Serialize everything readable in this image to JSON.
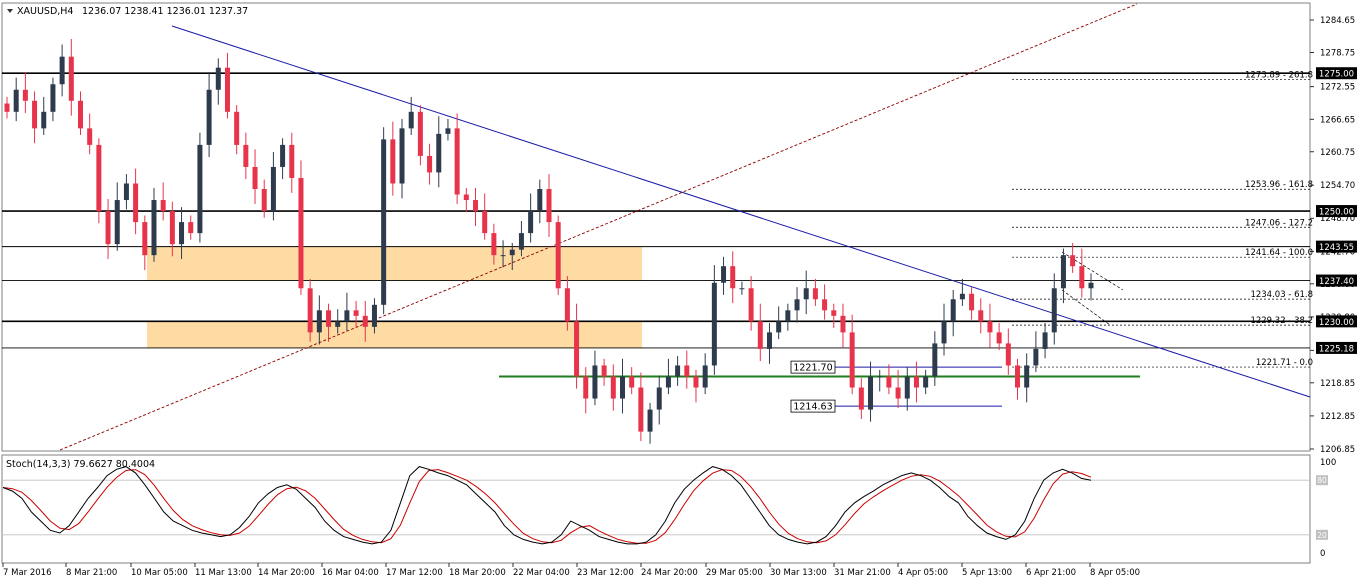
{
  "header": {
    "symbol": "XAUUSD,H4",
    "ohlc": "1236.07 1238.41 1236.01 1237.37"
  },
  "price_axis": {
    "ticks": [
      "1284.65",
      "1278.75",
      "1272.55",
      "1266.65",
      "1260.75",
      "1254.70",
      "1248.70",
      "1242.70",
      "1236.80",
      "1230.80",
      "1224.75",
      "1218.85",
      "1212.85",
      "1206.85"
    ],
    "tags": [
      {
        "label": "1275.00",
        "value": 1275.0
      },
      {
        "label": "1250.00",
        "value": 1250.0
      },
      {
        "label": "1243.55",
        "value": 1243.55
      },
      {
        "label": "1237.40",
        "value": 1237.4
      },
      {
        "label": "1230.00",
        "value": 1230.0
      },
      {
        "label": "1225.18",
        "value": 1225.18
      }
    ]
  },
  "fib_labels": [
    {
      "label": "1273.89 - 261.8",
      "value": 1273.89
    },
    {
      "label": "1253.96 - 161.8",
      "value": 1253.96
    },
    {
      "label": "1247.06 - 127.2",
      "value": 1247.06
    },
    {
      "label": "1241.64 - 100.0",
      "value": 1241.64
    },
    {
      "label": "1234.03 - 61.8",
      "value": 1234.03
    },
    {
      "label": "1229.32 - 38.2",
      "value": 1229.32
    },
    {
      "label": "1221.71 - 0.0",
      "value": 1221.71
    }
  ],
  "price_boxes": [
    {
      "label": "1221.70",
      "value": 1221.7
    },
    {
      "label": "1214.63",
      "value": 1214.63
    }
  ],
  "stoch": {
    "title": "Stoch(14,3,3) 79.6627 80.4004",
    "ticks": [
      "100",
      "80",
      "20",
      "0"
    ]
  },
  "time_axis": [
    "7 Mar 2016",
    "8 Mar 21:00",
    "10 Mar 05:00",
    "11 Mar 13:00",
    "14 Mar 20:00",
    "16 Mar 04:00",
    "17 Mar 12:00",
    "18 Mar 20:00",
    "22 Mar 04:00",
    "23 Mar 12:00",
    "24 Mar 20:00",
    "29 Mar 05:00",
    "30 Mar 13:00",
    "31 Mar 21:00",
    "4 Apr 05:00",
    "5 Apr 13:00",
    "6 Apr 21:00",
    "8 Apr 05:00"
  ],
  "colors": {
    "bull": "#2d3b4d",
    "bear": "#e8344a",
    "trend": "#1a1aa8",
    "support": "#1e7e1e",
    "zone": "#ffdba4",
    "stoch_main": "#000000",
    "stoch_signal": "#cc0000"
  },
  "chart_data": {
    "type": "candlestick",
    "symbol": "XAUUSD",
    "timeframe": "H4",
    "ylim": [
      1205.0,
      1289.0
    ],
    "series": [
      {
        "name": "price",
        "values": [
          1268,
          1272,
          1270,
          1265,
          1268,
          1273,
          1278,
          1270,
          1265,
          1262,
          1250,
          1244,
          1252,
          1255,
          1248,
          1242,
          1252,
          1250,
          1244,
          1248,
          1246,
          1262,
          1272,
          1276,
          1268,
          1262,
          1258,
          1254,
          1250,
          1258,
          1262,
          1256,
          1236,
          1228,
          1232,
          1229,
          1230,
          1232,
          1231,
          1229,
          1233,
          1263,
          1255,
          1265,
          1268,
          1260,
          1257,
          1264,
          1265,
          1253,
          1252,
          1250,
          1246,
          1242,
          1242,
          1243,
          1246,
          1250,
          1254,
          1248,
          1236,
          1230,
          1220,
          1216,
          1222,
          1220,
          1216,
          1220,
          1218,
          1210,
          1214,
          1218,
          1220,
          1222,
          1220,
          1218,
          1222,
          1237,
          1240,
          1236,
          1236,
          1230,
          1225,
          1228,
          1230,
          1232,
          1234,
          1236,
          1234,
          1232,
          1231,
          1228,
          1218,
          1214,
          1220,
          1220,
          1218,
          1216,
          1220,
          1218,
          1220,
          1226,
          1230,
          1234,
          1235,
          1232,
          1230,
          1228,
          1226,
          1222,
          1218,
          1222,
          1225,
          1228,
          1236,
          1242,
          1240,
          1236,
          1237
        ]
      },
      {
        "name": "trend-line",
        "values": [
          1284,
          1218
        ]
      },
      {
        "name": "support",
        "values": [
          1220
        ]
      }
    ],
    "stoch_values": [
      72,
      68,
      60,
      45,
      35,
      25,
      22,
      30,
      45,
      60,
      72,
      85,
      92,
      95,
      88,
      75,
      60,
      45,
      35,
      30,
      25,
      22,
      20,
      18,
      20,
      28,
      40,
      55,
      65,
      72,
      75,
      70,
      60,
      50,
      35,
      25,
      18,
      15,
      12,
      10,
      12,
      25,
      55,
      85,
      95,
      92,
      88,
      85,
      80,
      75,
      65,
      55,
      45,
      30,
      20,
      15,
      12,
      10,
      12,
      20,
      35,
      30,
      25,
      18,
      15,
      12,
      10,
      10,
      12,
      20,
      35,
      55,
      70,
      80,
      88,
      95,
      92,
      85,
      75,
      60,
      45,
      30,
      20,
      15,
      12,
      10,
      12,
      18,
      30,
      45,
      55,
      62,
      68,
      75,
      80,
      85,
      88,
      85,
      80,
      72,
      62,
      55,
      40,
      30,
      22,
      18,
      15,
      20,
      35,
      60,
      80,
      88,
      92,
      88,
      82,
      80
    ]
  }
}
